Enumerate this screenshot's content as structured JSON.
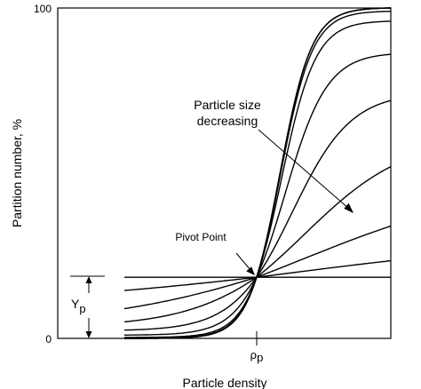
{
  "chart_data": {
    "type": "line",
    "title": "",
    "xlabel": "Particle density",
    "ylabel": "Partition number, %",
    "ylim": [
      0,
      100
    ],
    "y_ticks": [
      "0",
      "100"
    ],
    "x_ticks": [
      "ρp"
    ],
    "x_tick_main": "ρ",
    "x_tick_sub": "p",
    "grid": false,
    "pivot": {
      "label": "Pivot Point",
      "x_norm": 0.49,
      "y": 18.5
    },
    "yp_label_main": "Y",
    "yp_label_sub": "p",
    "annotation": {
      "line1": "Particle size",
      "line2": "decreasing"
    },
    "x_range_norm": [
      0,
      1
    ],
    "series_note_unused": "",
    "series": [
      {
        "kind": "horizontal",
        "y_left": 18.5,
        "y_right": 18.5
      },
      {
        "kind": "sigmoid",
        "y_left": 14.5,
        "y_right": 23.5
      },
      {
        "kind": "sigmoid",
        "y_left": 9,
        "y_right": 34
      },
      {
        "kind": "sigmoid",
        "y_left": 5,
        "y_right": 52
      },
      {
        "kind": "sigmoid",
        "y_left": 2.5,
        "y_right": 72
      },
      {
        "kind": "sigmoid",
        "y_left": 1,
        "y_right": 86
      },
      {
        "kind": "sigmoid",
        "y_left": 0.3,
        "y_right": 96
      },
      {
        "kind": "sigmoid",
        "y_left": 0.1,
        "y_right": 99
      },
      {
        "kind": "sigmoid",
        "y_left": 0,
        "y_right": 100
      },
      {
        "kind": "sigmoid",
        "y_left": 0,
        "y_right": 100
      },
      {
        "kind": "sigmoid",
        "y_left": 0,
        "y_right": 100
      }
    ]
  }
}
